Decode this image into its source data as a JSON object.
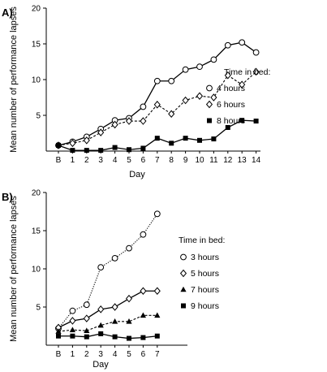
{
  "colors": {
    "ink": "#000000",
    "background": "#ffffff"
  },
  "chart_data": [
    {
      "panel_label": "A)",
      "type": "line",
      "xlabel": "Day",
      "ylabel": "Mean number of performance lapses",
      "categories": [
        "B",
        "1",
        "2",
        "3",
        "4",
        "5",
        "6",
        "7",
        "8",
        "9",
        "10",
        "11",
        "12",
        "13",
        "14"
      ],
      "yticks": [
        "5",
        "10",
        "15",
        "20"
      ],
      "ylim": [
        0,
        20
      ],
      "grid": false,
      "legend_placement": "right",
      "legend_title": "Time in bed:",
      "series": [
        {
          "name": "4 hours",
          "marker": "circle-open",
          "line": "solid",
          "values": [
            0.8,
            1.3,
            2.0,
            3.1,
            4.3,
            4.6,
            6.2,
            9.8,
            9.8,
            11.4,
            11.8,
            12.8,
            14.8,
            15.2,
            13.8
          ]
        },
        {
          "name": "6 hours",
          "marker": "diamond-open",
          "line": "dashed",
          "values": [
            0.8,
            1.1,
            1.5,
            2.6,
            3.7,
            4.2,
            4.2,
            6.5,
            5.2,
            7.1,
            7.7,
            7.5,
            10.6,
            9.3,
            11.1
          ]
        },
        {
          "name": "8 hours",
          "marker": "square-filled",
          "line": "solid",
          "values": [
            0.8,
            0.1,
            0.1,
            0.1,
            0.5,
            0.2,
            0.4,
            1.8,
            1.1,
            1.8,
            1.5,
            1.7,
            3.3,
            4.3,
            4.2
          ]
        }
      ]
    },
    {
      "panel_label": "B)",
      "type": "line",
      "xlabel": "Day",
      "ylabel": "Mean number of performance lapses",
      "categories": [
        "B",
        "1",
        "2",
        "3",
        "4",
        "5",
        "6",
        "7"
      ],
      "yticks": [
        "5",
        "10",
        "15",
        "20"
      ],
      "ylim": [
        0,
        20
      ],
      "grid": false,
      "legend_placement": "right",
      "legend_title": "Time in bed:",
      "series": [
        {
          "name": "3 hours",
          "marker": "circle-open",
          "line": "dotted",
          "values": [
            2.2,
            4.5,
            5.3,
            10.2,
            11.4,
            12.7,
            14.5,
            17.2
          ]
        },
        {
          "name": "5 hours",
          "marker": "diamond-open",
          "line": "solid",
          "values": [
            2.3,
            3.2,
            3.5,
            4.7,
            5.0,
            6.1,
            7.1,
            7.1
          ]
        },
        {
          "name": "7 hours",
          "marker": "triangle-filled",
          "line": "dashed",
          "values": [
            1.8,
            2.0,
            1.9,
            2.6,
            3.1,
            3.1,
            3.9,
            3.9
          ]
        },
        {
          "name": "9 hours",
          "marker": "square-filled",
          "line": "solid",
          "values": [
            1.2,
            1.2,
            1.1,
            1.5,
            1.1,
            0.9,
            1.0,
            1.2
          ]
        }
      ]
    }
  ]
}
